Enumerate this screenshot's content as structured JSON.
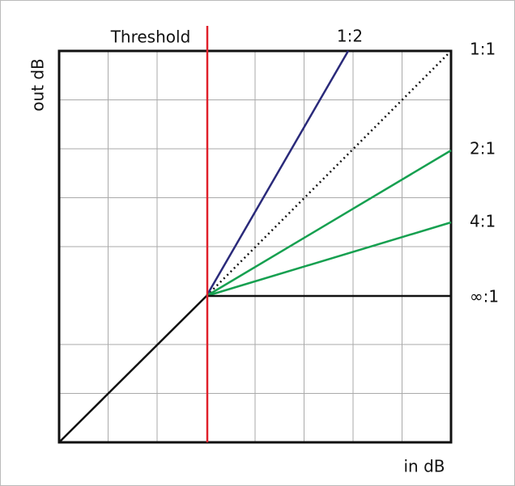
{
  "threshold_label": "Threshold",
  "axes": {
    "x_label": "in dB",
    "y_label": "out dB"
  },
  "ratios": [
    "1:2",
    "1:1",
    "2:1",
    "4:1",
    "∞:1"
  ]
}
